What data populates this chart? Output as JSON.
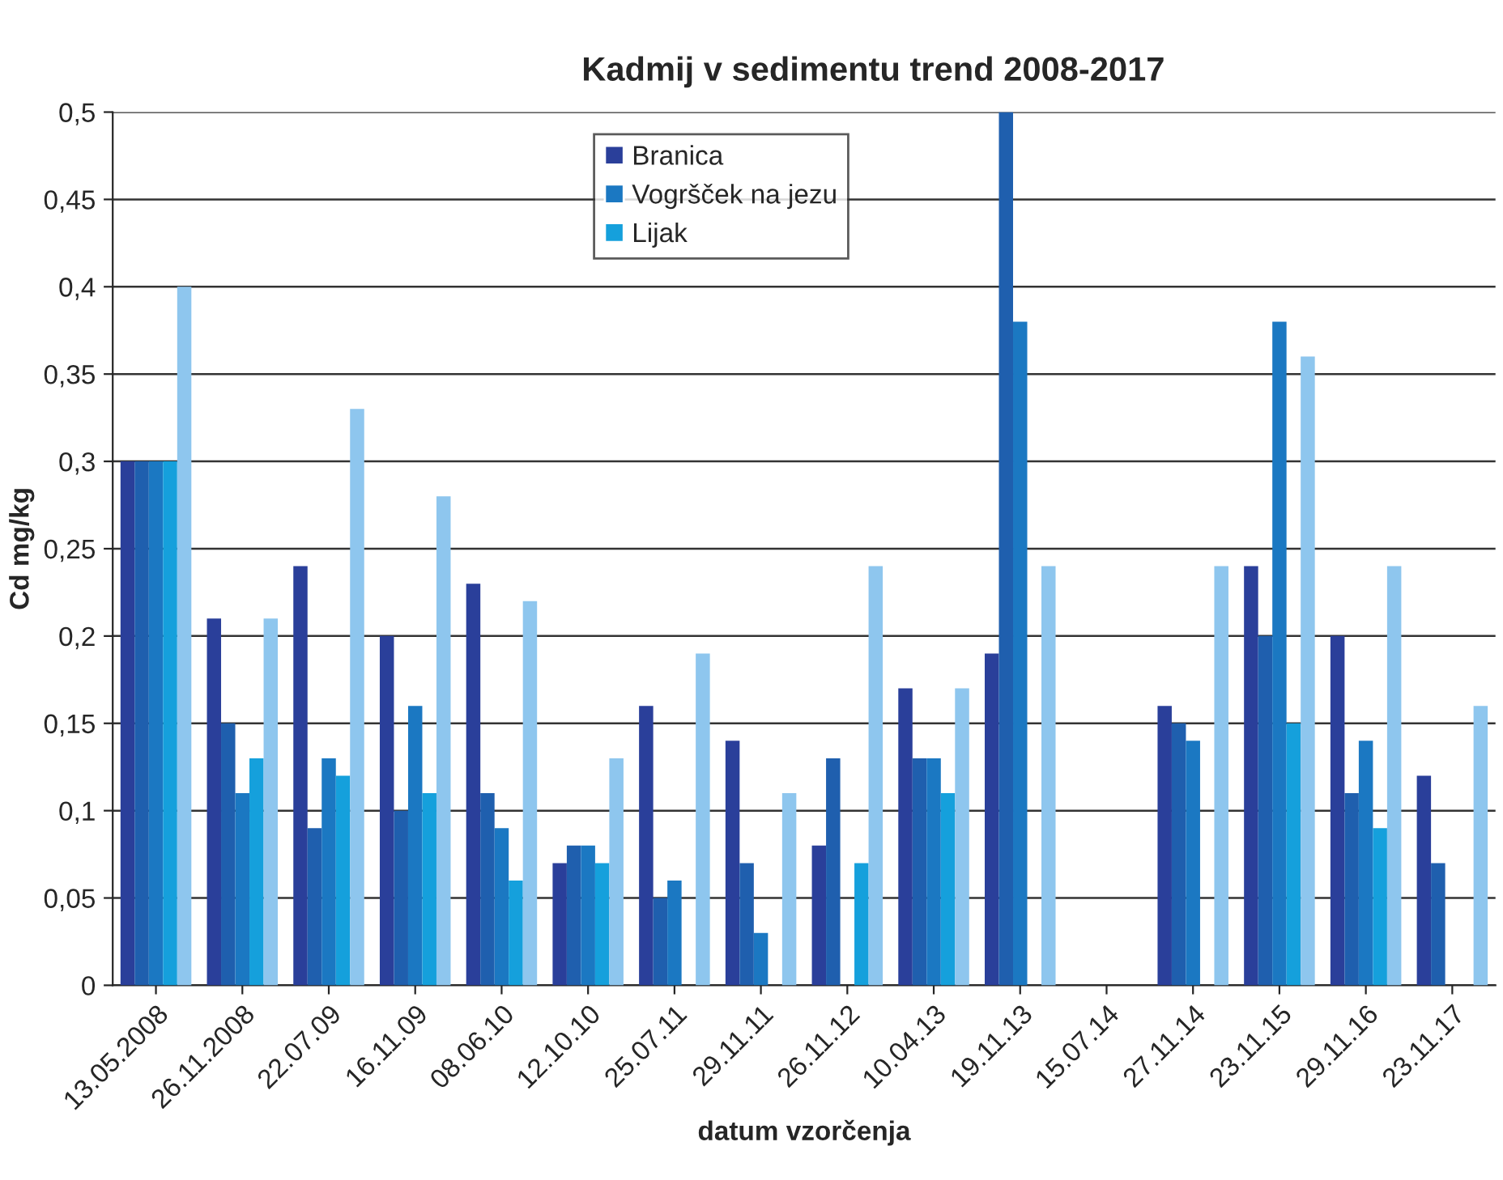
{
  "chart_data": {
    "type": "bar",
    "title": "Kadmij v sedimentu trend 2008-2017",
    "xlabel": "datum vzorčenja",
    "ylabel": "Cd mg/kg",
    "categories": [
      "13.05.2008",
      "26.11.2008",
      "22.07.09",
      "16.11.09",
      "08.06.10",
      "12.10.10",
      "25.07.11",
      "29.11.11",
      "26.11.12",
      "10.04.13",
      "19.11.13",
      "15.07.14",
      "27.11.14",
      "23.11.15",
      "29.11.16",
      "23.11.17"
    ],
    "series": [
      {
        "name": "Branica",
        "color": "#2a3f9a",
        "values": [
          0.3,
          0.21,
          0.24,
          0.2,
          0.23,
          0.07,
          0.16,
          0.14,
          0.08,
          0.17,
          0.19,
          null,
          0.16,
          0.24,
          0.2,
          0.12
        ]
      },
      {
        "color": "#1f5fae",
        "values": [
          0.3,
          0.15,
          0.09,
          0.1,
          0.11,
          0.08,
          0.05,
          0.07,
          0.13,
          0.13,
          0.5,
          null,
          0.15,
          0.2,
          0.11,
          0.07
        ]
      },
      {
        "name": "Vogršček na jezu",
        "color": "#1b78c2",
        "values": [
          0.3,
          0.11,
          0.13,
          0.16,
          0.09,
          0.08,
          0.06,
          0.03,
          null,
          0.13,
          0.38,
          null,
          0.14,
          0.38,
          0.14,
          null
        ]
      },
      {
        "name": "Lijak",
        "color": "#15a0dc",
        "values": [
          0.3,
          0.13,
          0.12,
          0.11,
          0.06,
          0.07,
          null,
          null,
          0.07,
          0.11,
          null,
          null,
          null,
          0.15,
          0.09,
          null
        ]
      },
      {
        "color": "#8ec6ee",
        "values": [
          0.4,
          0.21,
          0.33,
          0.28,
          0.22,
          0.13,
          0.19,
          0.11,
          0.24,
          0.17,
          0.24,
          null,
          0.24,
          0.36,
          0.24,
          0.16
        ]
      }
    ],
    "ylim": [
      0,
      0.5
    ],
    "yticks": [
      {
        "value": 0,
        "label": "0"
      },
      {
        "value": 0.05,
        "label": "0,05"
      },
      {
        "value": 0.1,
        "label": "0,1"
      },
      {
        "value": 0.15,
        "label": "0,15"
      },
      {
        "value": 0.2,
        "label": "0,2"
      },
      {
        "value": 0.25,
        "label": "0,25"
      },
      {
        "value": 0.3,
        "label": "0,3"
      },
      {
        "value": 0.35,
        "label": "0,35"
      },
      {
        "value": 0.4,
        "label": "0,4"
      },
      {
        "value": 0.45,
        "label": "0,45"
      },
      {
        "value": 0.5,
        "label": "0,5"
      }
    ],
    "grid": "y",
    "legend": "top"
  }
}
